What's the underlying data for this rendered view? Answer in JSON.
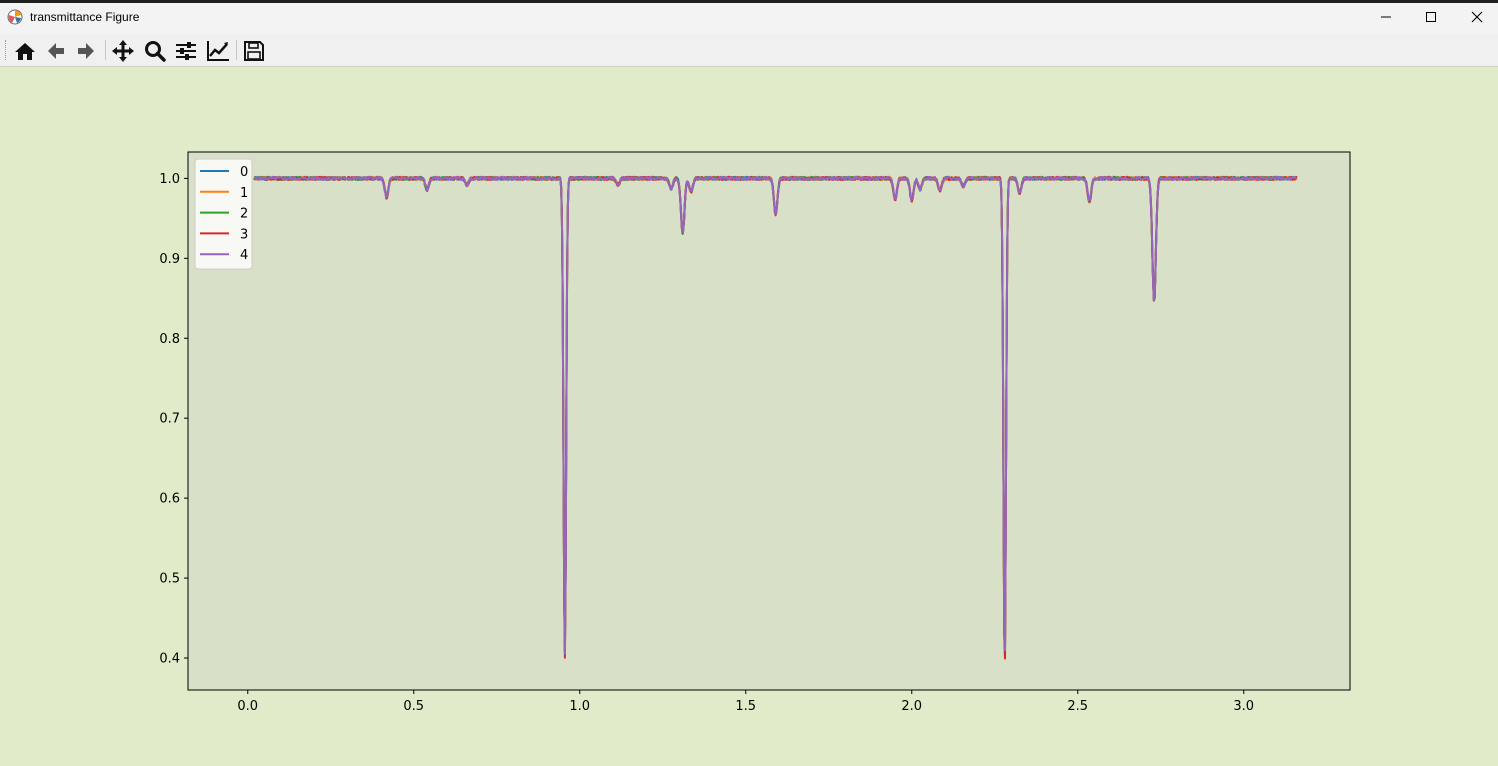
{
  "window": {
    "title": "transmittance Figure",
    "app_icon": "matplotlib-icon",
    "controls": [
      "minimize-icon",
      "maximize-icon",
      "close-icon"
    ]
  },
  "toolbar": {
    "buttons": [
      "home-icon",
      "back-arrow-icon",
      "forward-arrow-icon",
      "pan-icon",
      "zoom-icon",
      "configure-subplots-icon",
      "edit-axis-icon",
      "save-icon"
    ]
  },
  "colors": {
    "figure_background": "#dfebc9",
    "axes_background": "#d9e0c8"
  },
  "chart_data": {
    "type": "line",
    "title": "",
    "xlabel": "",
    "ylabel": "",
    "xlim": [
      -0.18,
      3.32
    ],
    "ylim": [
      0.36,
      1.033
    ],
    "xticks": [
      "0.0",
      "0.5",
      "1.0",
      "1.5",
      "2.0",
      "2.5",
      "3.0"
    ],
    "yticks": [
      "0.4",
      "0.5",
      "0.6",
      "0.7",
      "0.8",
      "0.9",
      "1.0"
    ],
    "grid": false,
    "legend_position": "upper-left",
    "x_range": [
      0.02,
      3.16
    ],
    "baseline": 1.0,
    "dips": [
      {
        "x": 0.418,
        "y": 0.976
      },
      {
        "x": 0.54,
        "y": 0.986
      },
      {
        "x": 0.66,
        "y": 0.992
      },
      {
        "x": 0.955,
        "y": 0.405
      },
      {
        "x": 1.115,
        "y": 0.992
      },
      {
        "x": 1.275,
        "y": 0.987
      },
      {
        "x": 1.31,
        "y": 0.932
      },
      {
        "x": 1.335,
        "y": 0.983
      },
      {
        "x": 1.59,
        "y": 0.955
      },
      {
        "x": 1.95,
        "y": 0.974
      },
      {
        "x": 2.0,
        "y": 0.972
      },
      {
        "x": 2.025,
        "y": 0.986
      },
      {
        "x": 2.085,
        "y": 0.985
      },
      {
        "x": 2.155,
        "y": 0.99
      },
      {
        "x": 2.28,
        "y": 0.395
      },
      {
        "x": 2.325,
        "y": 0.982
      },
      {
        "x": 2.535,
        "y": 0.971
      },
      {
        "x": 2.73,
        "y": 0.845
      }
    ],
    "series": [
      {
        "name": "0",
        "color": "#1f77b4"
      },
      {
        "name": "1",
        "color": "#ff7f0e"
      },
      {
        "name": "2",
        "color": "#2ca02c"
      },
      {
        "name": "3",
        "color": "#d62728"
      },
      {
        "name": "4",
        "color": "#9467bd"
      }
    ]
  }
}
